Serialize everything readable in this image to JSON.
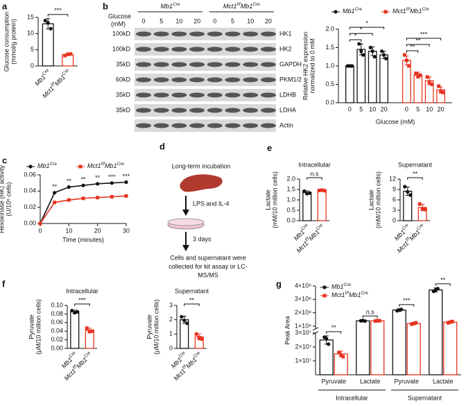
{
  "blot": {
    "panel": "b",
    "groups": [
      [
        "Mb1",
        "Cre"
      ],
      [
        "Mct1",
        "f/f",
        "Mb1",
        "Cre"
      ]
    ],
    "glucose_label": [
      "Glucose",
      "(mM)"
    ],
    "concentrations": [
      "0",
      "5",
      "10",
      "20",
      "0",
      "5",
      "10",
      "20"
    ],
    "rows": [
      {
        "size": "100kD",
        "protein": "HK1"
      },
      {
        "size": "100kD",
        "protein": "HK2"
      },
      {
        "size": "35kD",
        "protein": "GAPDH"
      },
      {
        "size": "60kD",
        "protein": "PKM1/2"
      },
      {
        "size": "35kD",
        "protein": "LDHB"
      },
      {
        "size": "35kD",
        "protein": "LDHA"
      },
      {
        "protein": "Actin"
      }
    ]
  },
  "diagram": {
    "panel": "d",
    "steps": [
      "Long-term incubation",
      "LPS and IL-4",
      "3 days"
    ],
    "result": [
      "Cells and supernatant were",
      "collected for kit assay or LC-",
      "MS/MS"
    ]
  },
  "chart_data": [
    {
      "panel": "a",
      "type": "bar",
      "ylabel": [
        "Glucose consumption",
        "(mmol/g protein)"
      ],
      "categories": [
        [
          "Mb1",
          "Cre"
        ],
        [
          "Mct1",
          "f/f",
          "Mb1",
          "Cre"
        ]
      ],
      "values": [
        13,
        3.5
      ],
      "errors": [
        1.6,
        0.3
      ],
      "points": [
        [
          14,
          13.3,
          11.5
        ],
        [
          3.2,
          3.6,
          3.7
        ]
      ],
      "colors": [
        "#111111",
        "#e8321e"
      ],
      "ylim": [
        0,
        15
      ],
      "yticks": [
        0,
        5,
        10,
        15
      ],
      "significance": "***"
    },
    {
      "type": "grouped_bar",
      "group_by": "series",
      "ylabel": [
        "Relative HK2 expression",
        "normalized to 0 mM"
      ],
      "xlabel": "Glucose (mM)",
      "categories": [
        "0",
        "5",
        "10",
        "20"
      ],
      "ylim": [
        0,
        2
      ],
      "yticks": [
        {
          "value": 0,
          "label": "0.0"
        },
        0.5,
        {
          "value": 1,
          "label": "1.0"
        },
        1.5,
        {
          "value": 2,
          "label": "2.0"
        }
      ],
      "series": [
        {
          "name": [
            "Mb1",
            "Cre"
          ],
          "color": "#111111",
          "values": [
            1.0,
            1.45,
            1.4,
            1.3
          ],
          "errors": [
            0.02,
            0.15,
            0.12,
            0.1
          ],
          "points": [
            [
              1,
              1,
              1
            ],
            [
              1.6,
              1.4,
              1.3
            ],
            [
              1.5,
              1.4,
              1.25
            ],
            [
              1.4,
              1.3,
              1.2
            ]
          ],
          "significance": [
            null,
            "*",
            "*",
            "*"
          ]
        },
        {
          "name": [
            "Mct1",
            "f/f",
            "Mb1",
            "Cre"
          ],
          "color": "#e8321e",
          "values": [
            1.15,
            0.75,
            0.6,
            0.35
          ],
          "errors": [
            0.12,
            0.08,
            0.1,
            0.08
          ],
          "points": [
            [
              1.3,
              1.15,
              1.0
            ],
            [
              0.8,
              0.72,
              0.75
            ],
            [
              0.7,
              0.55,
              0.5
            ],
            [
              0.45,
              0.3,
              0.28
            ]
          ],
          "significance": [
            null,
            "**",
            "**",
            "***"
          ]
        }
      ]
    },
    {
      "panel": "c",
      "type": "line",
      "ylabel": [
        "Hexokinase (HK) activity",
        "(U/10⁶ cells)"
      ],
      "xlabel": "Time (minutes)",
      "x": [
        0,
        5,
        10,
        15,
        20,
        25,
        30
      ],
      "xlim": [
        0,
        30
      ],
      "xticks": [
        0,
        10,
        20,
        30
      ],
      "ylim": [
        0,
        0.06
      ],
      "yticks": [
        {
          "value": 0,
          "label": "0.00"
        },
        0.02,
        0.04,
        0.06
      ],
      "series": [
        {
          "name": [
            "Mb1",
            "Cre"
          ],
          "color": "#111111",
          "values": [
            0,
            0.038,
            0.045,
            0.047,
            0.049,
            0.05,
            0.051
          ]
        },
        {
          "name": [
            "Mct1",
            "f/f",
            "Mb1",
            "Cre"
          ],
          "color": "#e8321e",
          "values": [
            0,
            0.026,
            0.029,
            0.031,
            0.032,
            0.033,
            0.034
          ]
        }
      ],
      "annotations": [
        {
          "x": 5,
          "text": "**"
        },
        {
          "x": 10,
          "text": "**"
        },
        {
          "x": 15,
          "text": "**"
        },
        {
          "x": 20,
          "text": "**"
        },
        {
          "x": 25,
          "text": "***"
        },
        {
          "x": 30,
          "text": "***"
        }
      ]
    },
    {
      "panel": "e",
      "type": "bar",
      "title": "Intracellular",
      "ylabel": [
        "Lactate",
        "(mM/10 million cells)"
      ],
      "categories": [
        [
          "Mb1",
          "Cre"
        ],
        [
          "Mct1",
          "f/f",
          "Mb1",
          "Cre"
        ]
      ],
      "values": [
        1.35,
        1.45
      ],
      "errors": [
        0.08,
        0.04
      ],
      "points": [
        [
          1.42,
          1.3,
          1.33
        ],
        [
          1.45,
          1.47,
          1.44
        ]
      ],
      "colors": [
        "#111111",
        "#e8321e"
      ],
      "ylim": [
        0,
        2
      ],
      "yticks": [
        {
          "value": 0,
          "label": "0.0"
        },
        0.5,
        {
          "value": 1,
          "label": "1.0"
        },
        1.5,
        {
          "value": 2,
          "label": "2.0"
        }
      ],
      "significance": "n.s"
    },
    {
      "type": "bar",
      "title": "Supernatant",
      "ylabel": [
        "Lactate",
        "(mM/10 million cells)"
      ],
      "categories": [
        [
          "Mb1",
          "Cre"
        ],
        [
          "Mct1",
          "f/f",
          "Mb1",
          "Cre"
        ]
      ],
      "values": [
        8.5,
        3.8
      ],
      "errors": [
        1.2,
        0.9
      ],
      "points": [
        [
          9.8,
          8.3,
          7.4
        ],
        [
          4.8,
          3.3,
          3.2
        ]
      ],
      "colors": [
        "#111111",
        "#e8321e"
      ],
      "ylim": [
        0,
        12
      ],
      "yticks": [
        0,
        3,
        6,
        9,
        12
      ],
      "significance": "**"
    },
    {
      "panel": "f",
      "type": "bar",
      "title": "Intracellular",
      "ylabel": [
        "Pyruvate",
        "(μM/10 million cells)"
      ],
      "categories": [
        [
          "Mb1",
          "Cre"
        ],
        [
          "Mct1",
          "f/f",
          "Mb1",
          "Cre"
        ]
      ],
      "values": [
        0.085,
        0.042
      ],
      "errors": [
        0.004,
        0.005
      ],
      "points": [
        [
          0.088,
          0.083,
          0.085
        ],
        [
          0.047,
          0.039,
          0.04
        ]
      ],
      "colors": [
        "#111111",
        "#e8321e"
      ],
      "ylim": [
        0,
        0.1
      ],
      "yticks": [
        {
          "value": 0,
          "label": "0.00"
        },
        0.02,
        0.04,
        0.06,
        0.08,
        {
          "value": 0.1,
          "label": "0.10"
        }
      ],
      "significance": "***"
    },
    {
      "type": "bar",
      "title": "Supernatant",
      "ylabel": [
        "Pyruvate",
        "(μM/10 million cells)"
      ],
      "categories": [
        [
          "Mb1",
          "Cre"
        ],
        [
          "Mct1",
          "f/f",
          "Mb1",
          "Cre"
        ]
      ],
      "values": [
        2.0,
        0.8
      ],
      "errors": [
        0.25,
        0.2
      ],
      "points": [
        [
          2.2,
          1.95,
          1.75
        ],
        [
          1.0,
          0.75,
          0.65
        ]
      ],
      "colors": [
        "#111111",
        "#e8321e"
      ],
      "ylim": [
        0,
        3
      ],
      "yticks": [
        0,
        1,
        2,
        3
      ],
      "significance": "**"
    },
    {
      "panel": "g",
      "type": "grouped_bar",
      "group_by": "category",
      "ylabel": [
        "Peak Area"
      ],
      "categories": [
        "Pyruvate",
        "Lactate",
        "Pyruvate",
        "Lactate"
      ],
      "group_labels": [
        "Intracellular",
        "Supernatant"
      ],
      "ylim": [
        0,
        400000000
      ],
      "ybreak": [
        30000000,
        80000000
      ],
      "yticks": [
        {
          "value": 10000000,
          "label": "1×10⁷"
        },
        {
          "value": 20000000,
          "label": "2×10⁷"
        },
        {
          "value": 30000000,
          "label": "3×10⁷"
        },
        {
          "value": 100000000,
          "label": "1×10⁸"
        },
        {
          "value": 200000000,
          "label": "2×10⁸"
        },
        {
          "value": 300000000,
          "label": "3×10⁸"
        },
        {
          "value": 400000000,
          "label": "4×10⁸"
        }
      ],
      "series": [
        {
          "name": [
            "Mb1",
            "Cre"
          ],
          "color": "#111111",
          "values": [
            25000000,
            140000000,
            220000000,
            370000000
          ],
          "errors": [
            3000000,
            5000000,
            10000000,
            15000000
          ],
          "points": [
            [
              27000000,
              26000000,
              22000000
            ],
            [
              140000000,
              142000000,
              138000000
            ],
            [
              215000000,
              220000000,
              225000000
            ],
            [
              360000000,
              370000000,
              380000000
            ]
          ]
        },
        {
          "name": [
            "Mct1",
            "f/f",
            "Mb1",
            "Cre"
          ],
          "color": "#e8321e",
          "values": [
            15000000,
            140000000,
            120000000,
            130000000
          ],
          "errors": [
            2000000,
            5000000,
            8000000,
            8000000
          ],
          "points": [
            [
              16000000,
              14000000,
              13000000
            ],
            [
              138000000,
              142000000,
              140000000
            ],
            [
              115000000,
              120000000,
              125000000
            ],
            [
              125000000,
              130000000,
              135000000
            ]
          ]
        }
      ],
      "significance": [
        "**",
        "n.s",
        "***",
        "**"
      ]
    }
  ]
}
